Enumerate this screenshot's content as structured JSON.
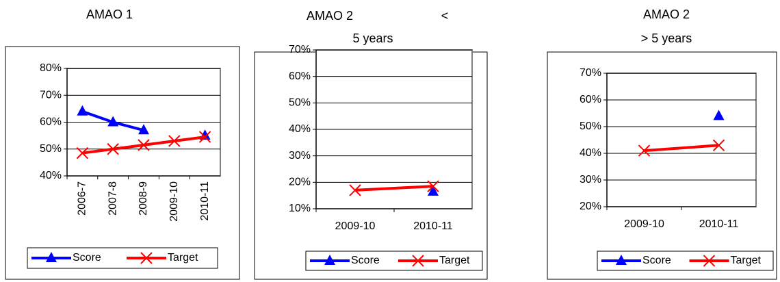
{
  "chart_data": [
    {
      "type": "line",
      "title": [
        "AMAO 1"
      ],
      "categories": [
        "2006-7",
        "2007-8",
        "2008-9",
        "2009-10",
        "2010-11"
      ],
      "series": [
        {
          "name": "Score",
          "color": "#0000ff",
          "marker": "triangle",
          "values": [
            64,
            60,
            57,
            null,
            55
          ]
        },
        {
          "name": "Target",
          "color": "#ff0000",
          "marker": "x",
          "values": [
            48.5,
            50,
            51.5,
            53,
            54.5
          ]
        }
      ],
      "ylim": [
        40,
        80
      ],
      "yticks": [
        {
          "value": 40,
          "label": "40%"
        },
        {
          "value": 50,
          "label": "50%"
        },
        {
          "value": 60,
          "label": "60%"
        },
        {
          "value": 70,
          "label": "70%"
        },
        {
          "value": 80,
          "label": "80%"
        }
      ],
      "grid": true,
      "legend": "bottom"
    },
    {
      "type": "line",
      "title": [
        "AMAO 2",
        "<",
        "5 years"
      ],
      "categories": [
        "2009-10",
        "2010-11"
      ],
      "series": [
        {
          "name": "Score",
          "color": "#0000ff",
          "marker": "triangle",
          "values": [
            null,
            16.5
          ]
        },
        {
          "name": "Target",
          "color": "#ff0000",
          "marker": "x",
          "values": [
            17,
            18.5
          ]
        }
      ],
      "ylim": [
        10,
        70
      ],
      "yticks": [
        {
          "value": 10,
          "label": "10%"
        },
        {
          "value": 20,
          "label": "20%"
        },
        {
          "value": 30,
          "label": "30%"
        },
        {
          "value": 40,
          "label": "40%"
        },
        {
          "value": 50,
          "label": "50%"
        },
        {
          "value": 60,
          "label": "60%"
        },
        {
          "value": 70,
          "label": "70%"
        }
      ],
      "grid": true,
      "legend": "bottom"
    },
    {
      "type": "line",
      "title": [
        "AMAO 2",
        "> 5 years"
      ],
      "categories": [
        "2009-10",
        "2010-11"
      ],
      "series": [
        {
          "name": "Score",
          "color": "#0000ff",
          "marker": "triangle",
          "values": [
            null,
            54
          ]
        },
        {
          "name": "Target",
          "color": "#ff0000",
          "marker": "x",
          "values": [
            41,
            43
          ]
        }
      ],
      "ylim": [
        20,
        70
      ],
      "yticks": [
        {
          "value": 20,
          "label": "20%"
        },
        {
          "value": 30,
          "label": "30%"
        },
        {
          "value": 40,
          "label": "40%"
        },
        {
          "value": 50,
          "label": "50%"
        },
        {
          "value": 60,
          "label": "60%"
        },
        {
          "value": 70,
          "label": "70%"
        }
      ],
      "grid": true,
      "legend": "bottom"
    }
  ]
}
